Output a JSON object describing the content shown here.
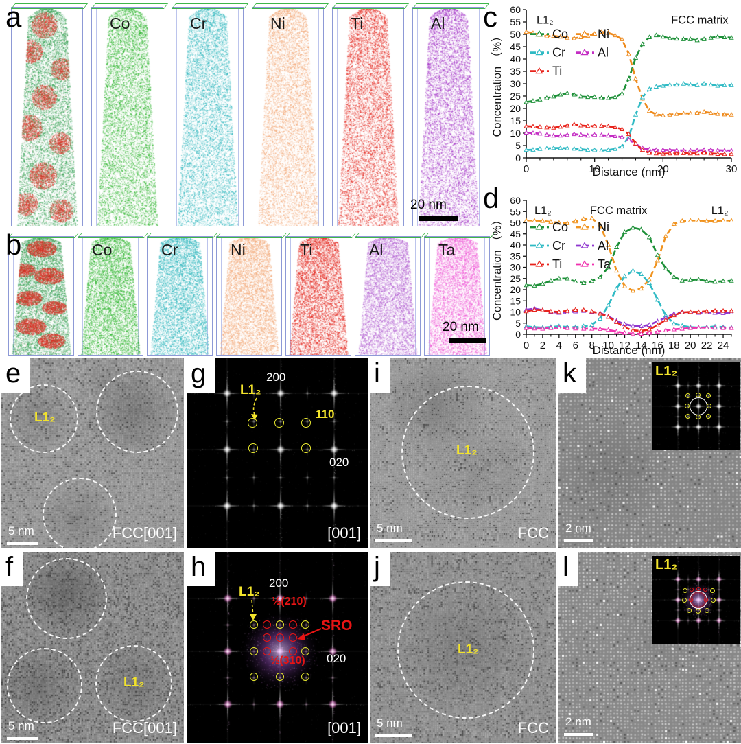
{
  "figure": {
    "panel_letters": [
      "a",
      "b",
      "c",
      "d",
      "e",
      "f",
      "g",
      "h",
      "i",
      "j",
      "k",
      "l"
    ]
  },
  "apt": {
    "a": {
      "scale_bar": "20 nm",
      "tips": [
        {
          "label": "",
          "color": "#2f9e4d",
          "composite": true,
          "blob_color": "#d92b1f"
        },
        {
          "label": "Co",
          "color": "#2cb42c"
        },
        {
          "label": "Cr",
          "color": "#2eb6bd"
        },
        {
          "label": "Ni",
          "color": "#f2a877"
        },
        {
          "label": "Ti",
          "color": "#e3251c"
        },
        {
          "label": "Al",
          "color": "#a233c6"
        }
      ]
    },
    "b": {
      "scale_bar": "20 nm",
      "tips": [
        {
          "label": "",
          "color": "#2f9e4d",
          "composite": true,
          "blob_color": "#d92b1f"
        },
        {
          "label": "Co",
          "color": "#2cb42c"
        },
        {
          "label": "Cr",
          "color": "#2eb6bd"
        },
        {
          "label": "Ni",
          "color": "#f2a877"
        },
        {
          "label": "Ti",
          "color": "#e3251c"
        },
        {
          "label": "Al",
          "color": "#b464d2"
        },
        {
          "label": "Ta",
          "color": "#ef5fd7"
        }
      ]
    }
  },
  "chart_data": [
    {
      "id": "c",
      "type": "line",
      "xlabel": "Distance (nm)",
      "ylabel": "Concentration （%）",
      "xlim": [
        0,
        30
      ],
      "ylim": [
        0,
        60
      ],
      "grid": false,
      "ticks": {
        "y": 5,
        "x_minor": 2,
        "x_label": 10
      },
      "legend": {
        "position": "upper-left-inside",
        "xf": 0.02,
        "yf": 0.165
      },
      "annotations": [
        {
          "text": "L1₂",
          "xf": 0.05,
          "yf": 0.04,
          "anchor": "start"
        },
        {
          "text": "FCC matrix",
          "xf": 0.985,
          "yf": 0.04,
          "anchor": "end"
        }
      ],
      "x": [
        0,
        1,
        2,
        3,
        4,
        5,
        6,
        7,
        8,
        9,
        10,
        11,
        12,
        13,
        14,
        15,
        16,
        17,
        18,
        19,
        20,
        21,
        22,
        23,
        24,
        25,
        26,
        27,
        28,
        29,
        30
      ],
      "series": [
        {
          "name": "Co",
          "color": "#1d9038",
          "values": [
            22.6,
            23,
            23.6,
            24.2,
            24.8,
            25.6,
            26.2,
            25.6,
            24.8,
            24.6,
            24.6,
            24.2,
            24.2,
            24.6,
            26,
            32,
            40.5,
            46,
            48.8,
            49.6,
            49,
            48.4,
            48.2,
            48,
            48,
            47.6,
            48,
            48.6,
            49,
            48.8,
            48.6
          ]
        },
        {
          "name": "Ni",
          "color": "#ee8a1c",
          "values": [
            51,
            50.5,
            49.8,
            49.2,
            49.4,
            49,
            48.6,
            48.4,
            48.8,
            49.4,
            50.2,
            51,
            50.6,
            49.6,
            48,
            42,
            32,
            24,
            19,
            17.6,
            17.2,
            17.5,
            17.8,
            18,
            18,
            18.2,
            18.6,
            18.2,
            17.8,
            17.6,
            17.5
          ]
        },
        {
          "name": "Cr",
          "color": "#2fbac4",
          "values": [
            3.2,
            3.3,
            3.6,
            3.8,
            4,
            4,
            3.9,
            3.7,
            3.5,
            3.2,
            3.1,
            3,
            3.2,
            3.6,
            4.6,
            8.5,
            17.5,
            24.5,
            27.8,
            28.8,
            29.2,
            29.6,
            29.6,
            30,
            29.6,
            29.4,
            30,
            29.6,
            29.2,
            29.4,
            29.4
          ]
        },
        {
          "name": "Al",
          "color": "#c32cc3",
          "values": [
            10.2,
            10,
            9.8,
            9.3,
            9,
            9,
            9.3,
            9.6,
            9.3,
            9,
            9.3,
            9.2,
            9,
            8.8,
            8.4,
            7.4,
            5.6,
            4,
            3.4,
            3.2,
            3.2,
            3.2,
            3.1,
            3,
            3,
            3,
            3.2,
            3.2,
            3.1,
            3,
            3
          ]
        },
        {
          "name": "Ti",
          "color": "#e8231b",
          "values": [
            12.8,
            12.7,
            12.5,
            12.3,
            12.2,
            12.6,
            13.1,
            13.6,
            13.1,
            12.9,
            12.8,
            13,
            12.8,
            12.4,
            11.6,
            9.6,
            5.8,
            3.2,
            2,
            1.8,
            1.7,
            1.8,
            1.8,
            1.9,
            1.8,
            1.8,
            2,
            1.8,
            1.6,
            1.5,
            1.5
          ]
        }
      ]
    },
    {
      "id": "d",
      "type": "line",
      "xlabel": "Distance (nm)",
      "ylabel": "Concentration （%）",
      "xlim": [
        0,
        25
      ],
      "ylim": [
        0,
        60
      ],
      "grid": false,
      "ticks": {
        "y": 5,
        "x_minor": 1,
        "x_label": 2
      },
      "legend": {
        "position": "upper-left-inside",
        "xf": 0.02,
        "yf": 0.2
      },
      "annotations": [
        {
          "text": "L1₂",
          "xf": 0.04,
          "yf": 0.04,
          "anchor": "start"
        },
        {
          "text": "FCC matrix",
          "xf": 0.45,
          "yf": 0.04,
          "anchor": "middle"
        },
        {
          "text": "L1₂",
          "xf": 0.985,
          "yf": 0.04,
          "anchor": "end"
        }
      ],
      "x": [
        0,
        1,
        2,
        3,
        4,
        5,
        6,
        7,
        8,
        9,
        10,
        11,
        12,
        13,
        14,
        15,
        16,
        17,
        18,
        19,
        20,
        21,
        22,
        23,
        24,
        25
      ],
      "series": [
        {
          "name": "Co",
          "color": "#1d9038",
          "values": [
            22,
            21.8,
            22.6,
            24,
            25,
            25,
            23.6,
            23,
            23.8,
            25.6,
            30,
            39,
            45.8,
            47.8,
            47,
            43.5,
            35.5,
            29.5,
            25.8,
            24,
            24.3,
            24.6,
            23.8,
            23.5,
            23.8,
            24
          ]
        },
        {
          "name": "Ni",
          "color": "#f0931f",
          "values": [
            51,
            51,
            50.8,
            50.4,
            50,
            49.8,
            50.6,
            51.6,
            52,
            49,
            40,
            28.5,
            21.5,
            19.5,
            20.5,
            24.5,
            33,
            44,
            49.5,
            50.8,
            51,
            51,
            50.8,
            50.8,
            51,
            51
          ]
        },
        {
          "name": "Cr",
          "color": "#2fbac4",
          "values": [
            3.5,
            3.2,
            3,
            3.3,
            3.6,
            3.3,
            3.2,
            3.6,
            4.2,
            7,
            13,
            20.5,
            26,
            28.5,
            27,
            23,
            15.5,
            8.5,
            4.8,
            3.8,
            3.2,
            3,
            3.2,
            3.5,
            3.2,
            3
          ]
        },
        {
          "name": "Al",
          "color": "#8f36cf",
          "values": [
            11,
            11.5,
            10.8,
            10,
            9.6,
            9.8,
            10.2,
            10.5,
            10,
            9.5,
            8,
            6,
            4.5,
            3.8,
            3.6,
            4.2,
            5.8,
            7.5,
            9.2,
            10,
            9.8,
            9.6,
            9.8,
            9.6,
            9.5,
            9.8
          ]
        },
        {
          "name": "Ti",
          "color": "#e8231b",
          "values": [
            10.3,
            11,
            10.8,
            10.2,
            10,
            10.5,
            11,
            10.8,
            10.2,
            9.3,
            7.8,
            5.5,
            3,
            1.8,
            1.5,
            2.2,
            4,
            6.5,
            8.5,
            9.8,
            10,
            10,
            10.3,
            10.5,
            10.5,
            10.5
          ]
        },
        {
          "name": "Ta",
          "color": "#f02fae",
          "values": [
            2.8,
            2.6,
            2.5,
            2.8,
            3,
            2.8,
            2.6,
            2.5,
            2.5,
            2.4,
            2,
            1.2,
            0.6,
            0.3,
            0.2,
            0.6,
            1.2,
            1.8,
            2.2,
            2.5,
            2.8,
            3,
            3,
            2.9,
            2.8,
            2.8
          ]
        }
      ]
    }
  ],
  "micro": {
    "e": {
      "region_label": "L1₂",
      "phase_label": "FCC[001]",
      "scale_bar": "5 nm"
    },
    "f": {
      "region_label": "L1₂",
      "phase_label": "FCC[001]",
      "scale_bar": "5 nm"
    },
    "g": {
      "l12": "L1₂",
      "g200": "200",
      "g110": "110",
      "g020": "020",
      "zone": "[001]"
    },
    "h": {
      "l12": "L1₂",
      "g200": "200",
      "half210": "½(210)",
      "sro": "SRO",
      "half310": "½(310)",
      "g020": "020",
      "zone": "[001]"
    },
    "i": {
      "region_label": "L1₂",
      "phase_label": "FCC",
      "scale_bar": "5 nm"
    },
    "j": {
      "region_label": "L1₂",
      "phase_label": "FCC",
      "scale_bar": "5 nm"
    },
    "k": {
      "inset_label": "L1₂",
      "scale_bar": "2 nm"
    },
    "l": {
      "inset_label": "L1₂",
      "scale_bar": "2 nm"
    }
  }
}
